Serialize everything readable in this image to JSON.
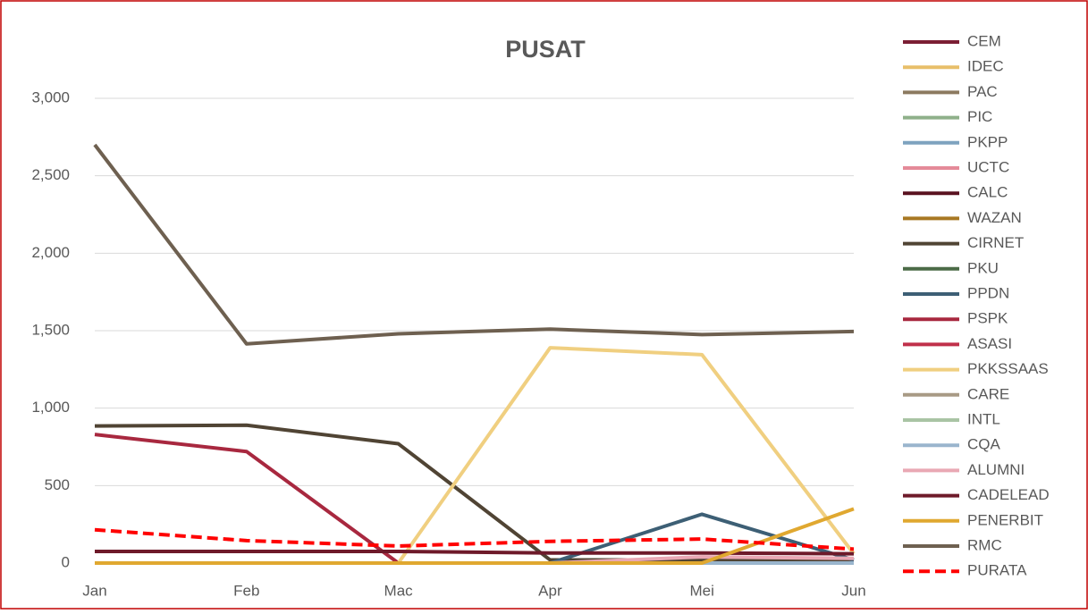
{
  "chart_data": {
    "type": "line",
    "title": "PUSAT",
    "categories": [
      "Jan",
      "Feb",
      "Mac",
      "Apr",
      "Mei",
      "Jun"
    ],
    "ylim": [
      0,
      3000
    ],
    "yticks": [
      0,
      500,
      {
        "value": 1000,
        "label": "1,000"
      },
      {
        "value": 1500,
        "label": "1,500"
      },
      {
        "value": 2000,
        "label": "2,000"
      },
      {
        "value": 2500,
        "label": "2,500"
      },
      {
        "value": 3000,
        "label": "3,000"
      }
    ],
    "grid": true,
    "legend": "right",
    "series": [
      {
        "name": "CEM",
        "color": "#7b1e34",
        "values": [
          0,
          0,
          0,
          0,
          0,
          0
        ]
      },
      {
        "name": "IDEC",
        "color": "#e8bf6a",
        "values": [
          0,
          0,
          0,
          0,
          0,
          0
        ]
      },
      {
        "name": "PAC",
        "color": "#8c7a60",
        "values": [
          0,
          0,
          0,
          0,
          0,
          0
        ]
      },
      {
        "name": "PIC",
        "color": "#8fb08a",
        "values": [
          0,
          0,
          0,
          0,
          0,
          0
        ]
      },
      {
        "name": "PKPP",
        "color": "#7ea3bf",
        "values": [
          0,
          0,
          0,
          0,
          0,
          0
        ]
      },
      {
        "name": "UCTC",
        "color": "#e58a99",
        "values": [
          0,
          0,
          0,
          0,
          0,
          0
        ]
      },
      {
        "name": "CALC",
        "color": "#5a1220",
        "values": [
          0,
          0,
          0,
          0,
          0,
          0
        ]
      },
      {
        "name": "WAZAN",
        "color": "#a87822",
        "values": [
          0,
          0,
          0,
          0,
          0,
          0
        ]
      },
      {
        "name": "CIRNET",
        "color": "#504434",
        "values": [
          885,
          890,
          770,
          20,
          20,
          20
        ]
      },
      {
        "name": "PKU",
        "color": "#4b6b47",
        "values": [
          0,
          0,
          0,
          0,
          0,
          0
        ]
      },
      {
        "name": "PPDN",
        "color": "#3d5f75",
        "values": [
          0,
          0,
          0,
          0,
          315,
          20
        ]
      },
      {
        "name": "PSPK",
        "color": "#a8283f",
        "values": [
          830,
          720,
          0,
          0,
          0,
          0
        ]
      },
      {
        "name": "ASASI",
        "color": "#c0304a",
        "values": [
          0,
          0,
          0,
          0,
          0,
          0
        ]
      },
      {
        "name": "PKKSSAAS",
        "color": "#f0cf80",
        "values": [
          0,
          0,
          0,
          1390,
          1345,
          60
        ]
      },
      {
        "name": "CARE",
        "color": "#a89a85",
        "values": [
          0,
          0,
          0,
          0,
          0,
          0
        ]
      },
      {
        "name": "INTL",
        "color": "#a9c4a4",
        "values": [
          0,
          0,
          0,
          0,
          0,
          0
        ]
      },
      {
        "name": "CQA",
        "color": "#9ab5cd",
        "values": [
          0,
          0,
          0,
          0,
          0,
          0
        ]
      },
      {
        "name": "ALUMNI",
        "color": "#e9a8b4",
        "values": [
          0,
          0,
          0,
          0,
          40,
          30
        ]
      },
      {
        "name": "CADELEAD",
        "color": "#6e1a2a",
        "values": [
          75,
          75,
          75,
          65,
          65,
          60
        ]
      },
      {
        "name": "PENERBIT",
        "color": "#e0a830",
        "values": [
          0,
          0,
          0,
          0,
          0,
          350
        ]
      },
      {
        "name": "RMC",
        "color": "#6e6050",
        "values": [
          2700,
          1415,
          1480,
          1510,
          1475,
          1495
        ]
      },
      {
        "name": "PURATA",
        "color": "#ff0000",
        "dash": true,
        "values": [
          215,
          145,
          110,
          140,
          155,
          90
        ]
      }
    ]
  }
}
